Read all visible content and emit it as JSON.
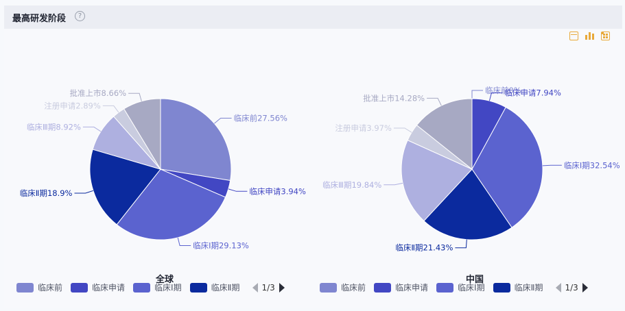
{
  "header": {
    "title": "最高研发阶段",
    "help_icon": "question-circle-icon"
  },
  "toolbar": {
    "icons": [
      "table-view-icon",
      "bar-chart-icon",
      "fullscreen-icon"
    ],
    "color": "#e8a93a"
  },
  "legend": {
    "items": [
      {
        "label": "临床前",
        "color": "#7f86d0"
      },
      {
        "label": "临床申请",
        "color": "#4247c3"
      },
      {
        "label": "临床Ⅰ期",
        "color": "#5b63cf"
      },
      {
        "label": "临床Ⅱ期",
        "color": "#0b2a9e"
      }
    ],
    "page": "1/3"
  },
  "chart_data": [
    {
      "type": "pie",
      "title": "全球",
      "slices": [
        {
          "label": "临床前",
          "value": 27.56,
          "text": "临床前27.56%",
          "color": "#7f86d0"
        },
        {
          "label": "临床申请",
          "value": 3.94,
          "text": "临床申请3.94%",
          "color": "#4247c3"
        },
        {
          "label": "临床Ⅰ期",
          "value": 29.13,
          "text": "临床Ⅰ期29.13%",
          "color": "#5b63cf"
        },
        {
          "label": "临床Ⅱ期",
          "value": 18.9,
          "text": "临床Ⅱ期18.9%",
          "color": "#0b2a9e"
        },
        {
          "label": "临床Ⅲ期",
          "value": 8.92,
          "text": "临床Ⅲ期8.92%",
          "color": "#aeb0e0"
        },
        {
          "label": "注册申请",
          "value": 2.89,
          "text": "注册申请2.89%",
          "color": "#c9ccdf"
        },
        {
          "label": "批准上市",
          "value": 8.66,
          "text": "批准上市8.66%",
          "color": "#a7a9c3"
        }
      ]
    },
    {
      "type": "pie",
      "title": "中国",
      "slices": [
        {
          "label": "临床前",
          "value": 0,
          "text": "临床前0%",
          "color": "#7f86d0"
        },
        {
          "label": "临床申请",
          "value": 7.94,
          "text": "临床申请7.94%",
          "color": "#4247c3"
        },
        {
          "label": "临床Ⅰ期",
          "value": 32.54,
          "text": "临床Ⅰ期32.54%",
          "color": "#5b63cf"
        },
        {
          "label": "临床Ⅱ期",
          "value": 21.43,
          "text": "临床Ⅱ期21.43%",
          "color": "#0b2a9e"
        },
        {
          "label": "临床Ⅲ期",
          "value": 19.84,
          "text": "临床Ⅲ期19.84%",
          "color": "#aeb0e0"
        },
        {
          "label": "注册申请",
          "value": 3.97,
          "text": "注册申请3.97%",
          "color": "#c9ccdf"
        },
        {
          "label": "批准上市",
          "value": 14.28,
          "text": "批准上市14.28%",
          "color": "#a7a9c3"
        }
      ]
    }
  ]
}
